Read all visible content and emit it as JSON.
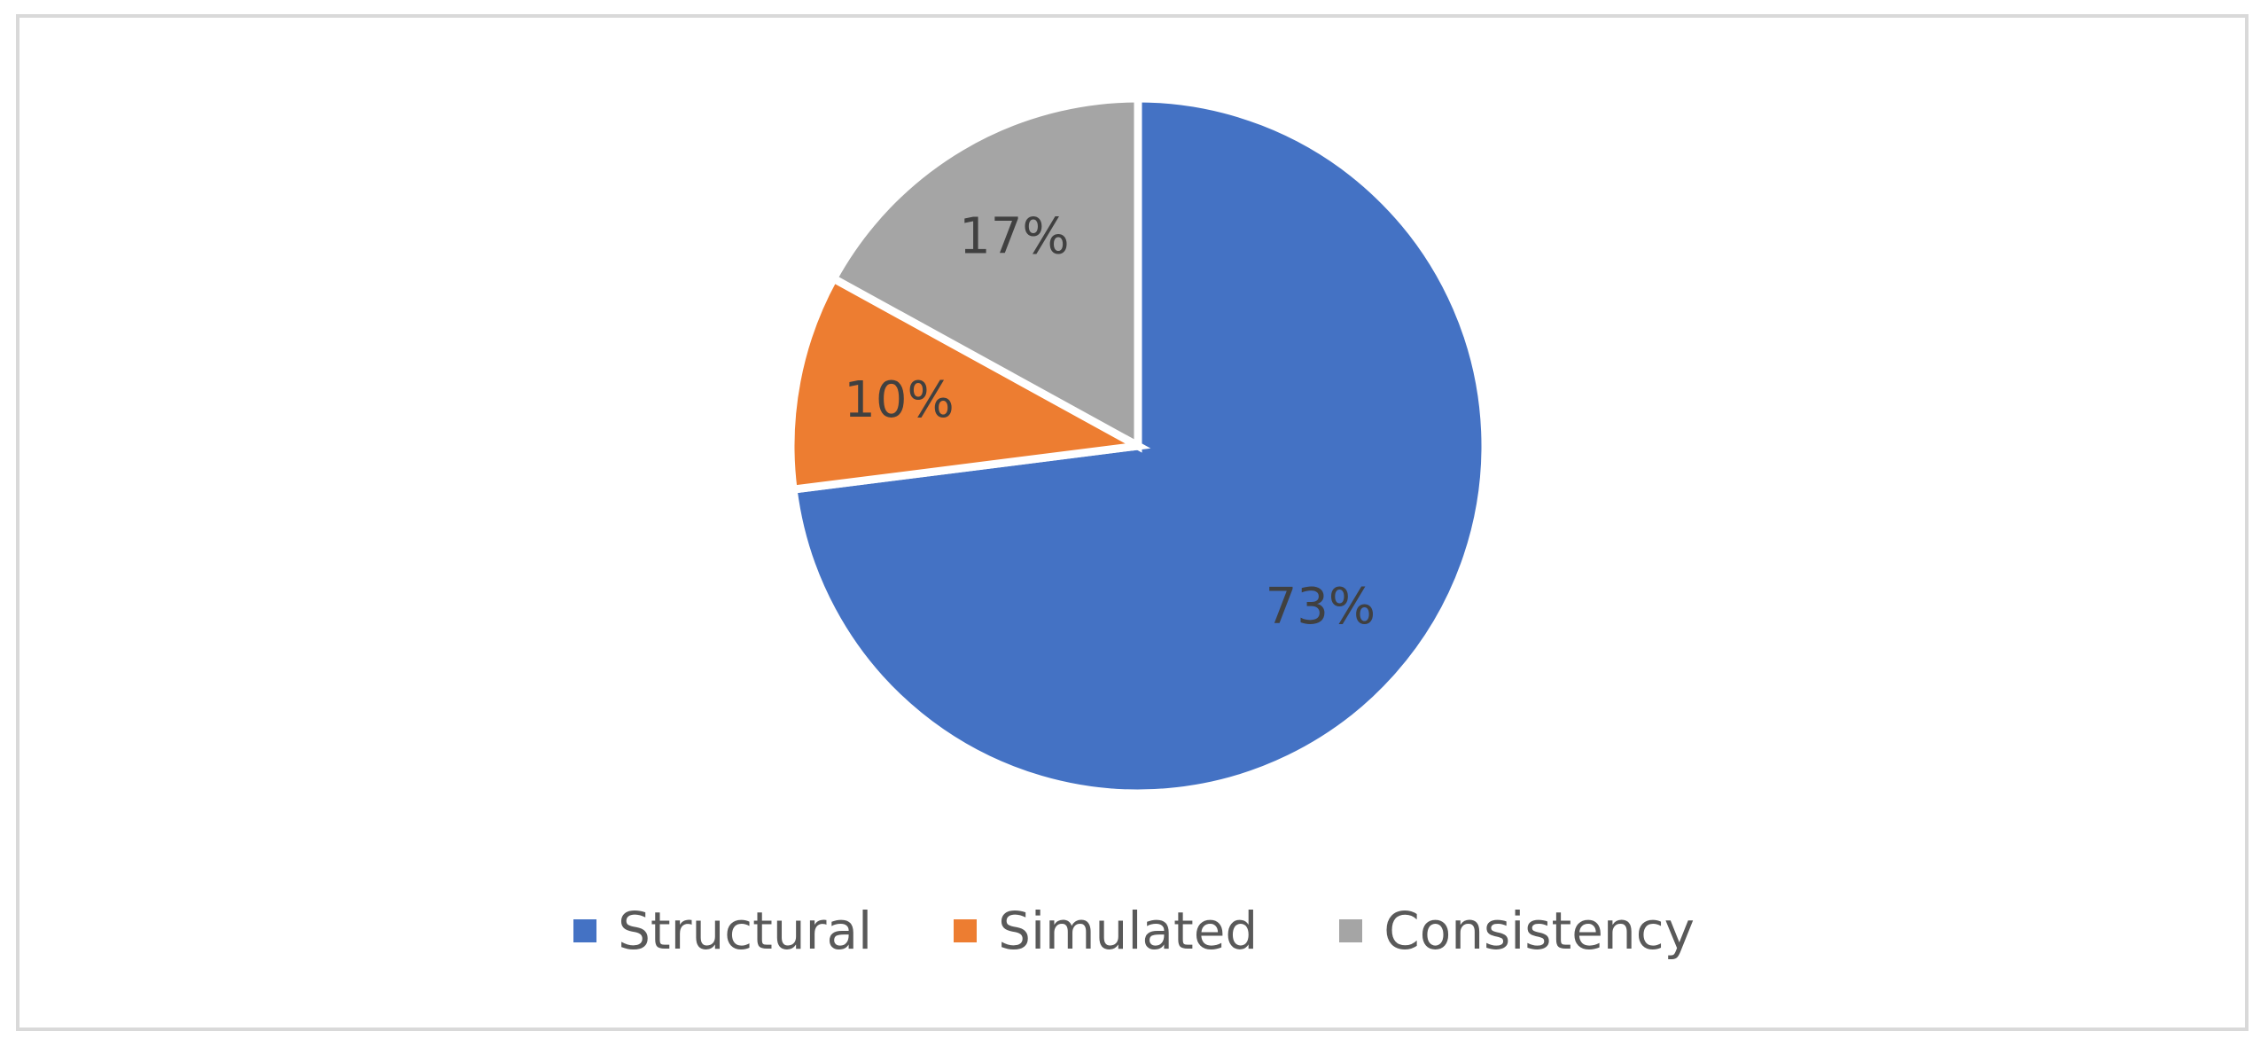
{
  "chart_data": {
    "type": "pie",
    "categories": [
      "Structural",
      "Simulated",
      "Consistency"
    ],
    "values": [
      73,
      10,
      17
    ],
    "value_labels": [
      "73%",
      "10%",
      "17%"
    ],
    "colors": [
      "#4472C4",
      "#ED7D31",
      "#A5A5A5"
    ],
    "start_angle_deg": 0,
    "direction": "clockwise",
    "legend": {
      "position": "bottom",
      "entries": [
        "Structural",
        "Simulated",
        "Consistency"
      ]
    },
    "title": ""
  }
}
